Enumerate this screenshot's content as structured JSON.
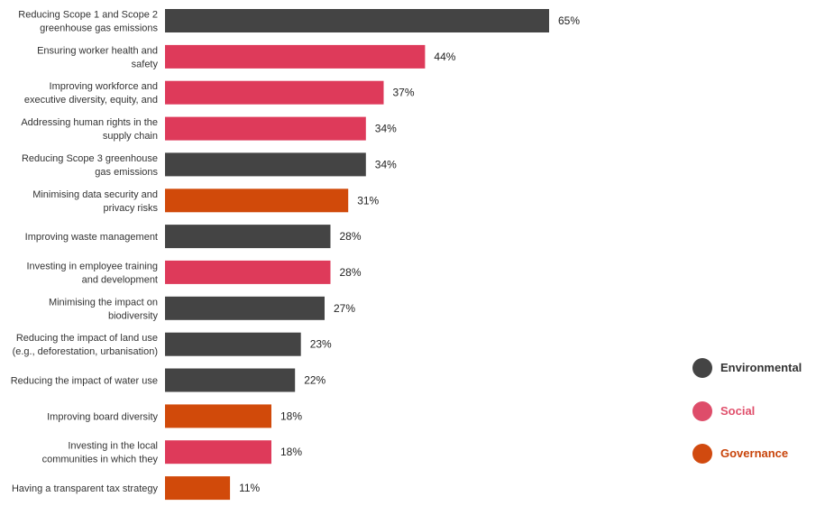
{
  "chart_data": {
    "type": "bar",
    "orientation": "horizontal",
    "title": "",
    "xlabel": "",
    "ylabel": "",
    "value_suffix": "%",
    "xlim": [
      0,
      100
    ],
    "grid": false,
    "legend_position": "bottom-right",
    "categories": [
      [
        "Reducing Scope 1 and Scope 2",
        "greenhouse gas emissions"
      ],
      [
        "Ensuring worker health and",
        "safety"
      ],
      [
        "Improving workforce and",
        "executive diversity, equity, and"
      ],
      [
        "Addressing human rights in the",
        "supply chain"
      ],
      [
        "Reducing Scope 3 greenhouse",
        "gas emissions"
      ],
      [
        "Minimising data security and",
        "privacy risks"
      ],
      [
        "Improving waste management"
      ],
      [
        "Investing in employee training",
        "and development"
      ],
      [
        "Minimising the impact on",
        "biodiversity"
      ],
      [
        "Reducing the impact of land use",
        "(e.g., deforestation, urbanisation)"
      ],
      [
        "Reducing the impact of water use"
      ],
      [
        "Improving board diversity"
      ],
      [
        "Investing in the local",
        "communities in which they"
      ],
      [
        "Having a transparent tax strategy"
      ]
    ],
    "values": [
      65,
      44,
      37,
      34,
      34,
      31,
      28,
      28,
      27,
      23,
      22,
      18,
      18,
      11
    ],
    "groups": [
      "Environmental",
      "Social",
      "Social",
      "Social",
      "Environmental",
      "Governance",
      "Environmental",
      "Social",
      "Environmental",
      "Environmental",
      "Environmental",
      "Governance",
      "Social",
      "Governance"
    ],
    "legend": [
      {
        "name": "Environmental",
        "color": "#444444",
        "text_color": "#333333"
      },
      {
        "name": "Social",
        "color": "#de4d6a",
        "text_color": "#e0506c"
      },
      {
        "name": "Governance",
        "color": "#d14a0f",
        "text_color": "#c8440a"
      }
    ],
    "colors": {
      "Environmental": "#444444",
      "Social": "#de3a5a",
      "Governance": "#d14a0a"
    }
  }
}
